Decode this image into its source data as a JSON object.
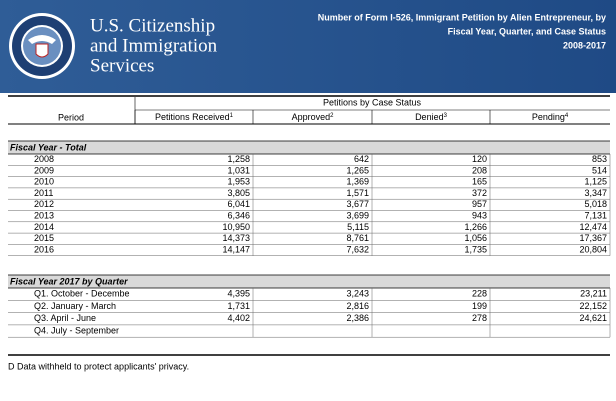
{
  "header": {
    "agency": [
      "U.S. Citizenship",
      "and Immigration",
      "Services"
    ],
    "title": [
      "Number of Form I-526, Immigrant Petition by Alien Entrepreneur, by",
      "Fiscal Year, Quarter, and Case Status",
      "2008-2017"
    ]
  },
  "table": {
    "period_header": "Period",
    "group_header": "Petitions by Case Status",
    "columns": [
      {
        "text": "Petitions Received",
        "note": "1"
      },
      {
        "text": "Approved",
        "note": "2"
      },
      {
        "text": "Denied",
        "note": "3"
      },
      {
        "text": "Pending",
        "note": "4"
      }
    ],
    "sections": [
      {
        "title": "Fiscal Year - Total",
        "rows": [
          {
            "period": "2008",
            "values": [
              "1,258",
              "642",
              "120",
              "853"
            ]
          },
          {
            "period": "2009",
            "values": [
              "1,031",
              "1,265",
              "208",
              "514"
            ]
          },
          {
            "period": "2010",
            "values": [
              "1,953",
              "1,369",
              "165",
              "1,125"
            ]
          },
          {
            "period": "2011",
            "values": [
              "3,805",
              "1,571",
              "372",
              "3,347"
            ]
          },
          {
            "period": "2012",
            "values": [
              "6,041",
              "3,677",
              "957",
              "5,018"
            ]
          },
          {
            "period": "2013",
            "values": [
              "6,346",
              "3,699",
              "943",
              "7,131"
            ]
          },
          {
            "period": "2014",
            "values": [
              "10,950",
              "5,115",
              "1,266",
              "12,474"
            ]
          },
          {
            "period": "2015",
            "values": [
              "14,373",
              "8,761",
              "1,056",
              "17,367"
            ]
          },
          {
            "period": "2016",
            "values": [
              "14,147",
              "7,632",
              "1,735",
              "20,804"
            ]
          }
        ]
      },
      {
        "title": "Fiscal Year 2017 by Quarter",
        "rows": [
          {
            "period": "Q1. October - Decembe",
            "values": [
              "4,395",
              "3,243",
              "228",
              "23,211"
            ]
          },
          {
            "period": "Q2. January - March",
            "values": [
              "1,731",
              "2,816",
              "199",
              "22,152"
            ]
          },
          {
            "period": "Q3. April - June",
            "values": [
              "4,402",
              "2,386",
              "278",
              "24,621"
            ]
          },
          {
            "period": "Q4. July - September"
          }
        ]
      }
    ]
  },
  "footnote": "D  Data withheld to protect applicants' privacy."
}
